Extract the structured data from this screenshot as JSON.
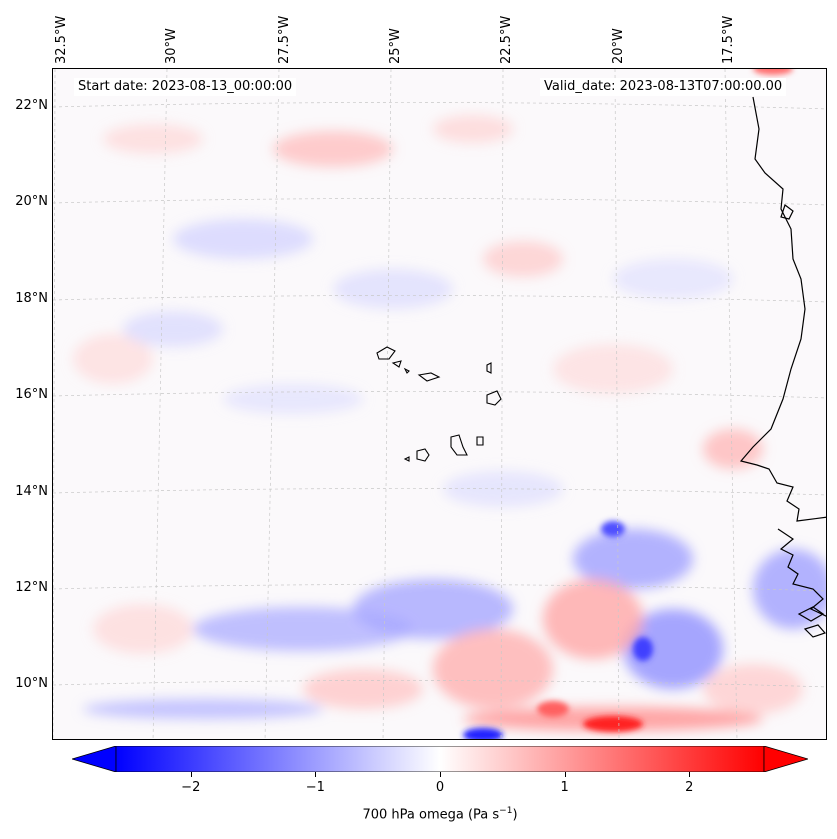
{
  "map": {
    "start_date": "Start date: 2023-08-13_00:00:00",
    "valid_date": "Valid_date: 2023-08-13T07:00:00.00",
    "longitude_labels": [
      "32.5°W",
      "30°W",
      "27.5°W",
      "25°W",
      "22.5°W",
      "20°W",
      "17.5°W"
    ],
    "latitude_labels": [
      "22°N",
      "20°N",
      "18°N",
      "16°N",
      "14°N",
      "12°N",
      "10°N"
    ],
    "gridlines": "dashed",
    "features": [
      "Cape Verde islands",
      "West African coastline"
    ]
  },
  "colorbar": {
    "ticks": [
      "−2",
      "−1",
      "0",
      "1",
      "2"
    ],
    "tick_values": [
      -2,
      -1,
      0,
      1,
      2
    ],
    "range": [
      -2.6,
      2.6
    ],
    "title": "700 hPa omega (Pa s",
    "title_exponent": "−1",
    "title_suffix": ")",
    "colormap": "bwr",
    "colors": {
      "low": "#0000ff",
      "mid": "#ffffff",
      "high": "#ff0000"
    }
  }
}
